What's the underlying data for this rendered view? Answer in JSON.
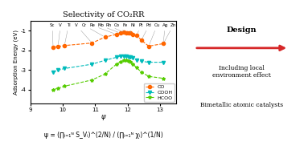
{
  "chart_data": {
    "type": "line",
    "title": "Selectivity of CO₂RR",
    "xlabel": "ψ",
    "ylabel": "Adsorption Energy (eV)",
    "x": [
      9.7,
      9.85,
      10.05,
      10.9,
      11.3,
      11.65,
      11.78,
      11.88,
      11.95,
      12.02,
      12.08,
      12.15,
      12.28,
      12.42,
      12.65,
      13.1
    ],
    "series": [
      {
        "name": "CO",
        "color": "#FF6600",
        "marker": "o",
        "line_style": "dashed",
        "values": [
          -1.85,
          -1.8,
          -1.75,
          -1.62,
          -1.32,
          -1.18,
          -1.12,
          -1.08,
          -1.1,
          -1.12,
          -1.1,
          -1.18,
          -1.22,
          -1.48,
          -1.78,
          -1.65
        ]
      },
      {
        "name": "COOH",
        "color": "#00BBBB",
        "marker": "v",
        "line_style": "dashed",
        "values": [
          -3.1,
          -3.0,
          -2.92,
          -2.7,
          -2.5,
          -2.35,
          -2.28,
          -2.28,
          -2.28,
          -2.32,
          -2.32,
          -2.38,
          -2.48,
          -2.55,
          -2.6,
          -2.6
        ]
      },
      {
        "name": "HCOO",
        "color": "#55CC00",
        "marker": "*",
        "line_style": "dashed",
        "values": [
          -4.0,
          -3.92,
          -3.82,
          -3.5,
          -3.2,
          -2.7,
          -2.58,
          -2.5,
          -2.48,
          -2.52,
          -2.58,
          -2.68,
          -2.88,
          -3.1,
          -3.32,
          -3.42
        ]
      }
    ],
    "xlim": [
      9,
      13.5
    ],
    "ylim": [
      -4.7,
      -0.5
    ],
    "xticks": [
      9,
      10,
      11,
      12,
      13
    ],
    "yticks": [
      -1,
      -2,
      -3,
      -4
    ],
    "legend": "lower right",
    "annotations": [
      {
        "text": "Sc",
        "x": 9.7,
        "y": -1.85
      },
      {
        "text": "V",
        "x": 9.85,
        "y": -1.8
      },
      {
        "text": "Ti",
        "x": 10.05,
        "y": -1.75
      },
      {
        "text": "V",
        "x": 10.9,
        "y": -1.62
      },
      {
        "text": "Cr",
        "x": 11.3,
        "y": -1.32
      },
      {
        "text": "Re",
        "x": 11.65,
        "y": -1.18
      },
      {
        "text": "Mo",
        "x": 11.78,
        "y": -1.12
      },
      {
        "text": "Rh",
        "x": 11.88,
        "y": -1.08
      },
      {
        "text": "Co",
        "x": 11.95,
        "y": -1.1
      },
      {
        "text": "Fe",
        "x": 12.02,
        "y": -1.12
      },
      {
        "text": "Ni",
        "x": 12.08,
        "y": -1.1
      },
      {
        "text": "Pt",
        "x": 12.28,
        "y": -1.22
      },
      {
        "text": "Pd",
        "x": 12.42,
        "y": -1.48
      },
      {
        "text": "Cu",
        "x": 12.65,
        "y": -1.78
      },
      {
        "text": "Ag",
        "x": 13.1,
        "y": -1.65
      },
      {
        "text": "Zn",
        "x": 13.1,
        "y": -1.65
      },
      {
        "text": "ψ = (∏ᵢ₌₁ᴺ S_Vᵢ)^(2/N) / (∏ᵢ₌₁ᴺ χᵢ)^(1/N)"
      },
      {
        "text": "Design"
      },
      {
        "text": "Including local\nenvironment effect"
      },
      {
        "text": "Bimetallic atomic catalysts"
      }
    ]
  }
}
